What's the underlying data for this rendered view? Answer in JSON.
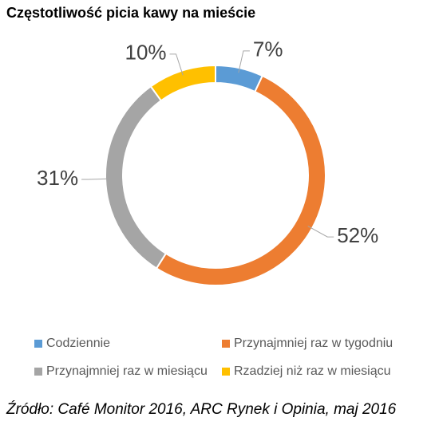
{
  "chart_data": {
    "type": "donut",
    "title": "Częstotliwość picia kawy na mieście",
    "categories": [
      "Codziennie",
      "Przynajmniej raz w tygodniu",
      "Przynajmniej raz w miesiącu",
      "Rzadziej niż raz w miesiącu"
    ],
    "values": [
      7,
      52,
      31,
      10
    ],
    "value_labels": [
      "7%",
      "52%",
      "31%",
      "10%"
    ],
    "colors": [
      "#5b9bd5",
      "#ed7d31",
      "#a5a5a5",
      "#ffc000"
    ],
    "legend": "bottom",
    "source": "Źródło: Café Monitor 2016, ARC Rynek i Opinia, maj 2016"
  }
}
